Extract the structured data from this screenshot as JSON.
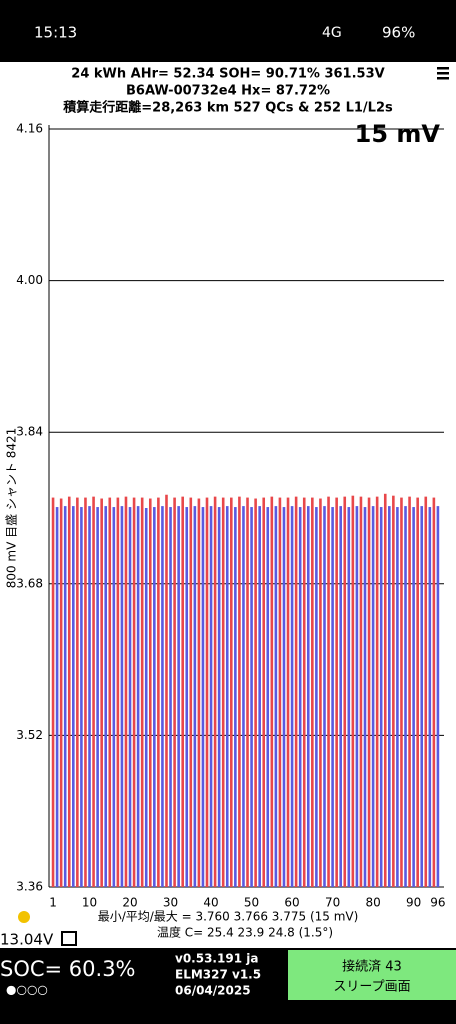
{
  "status_bar": {
    "time": "15:13",
    "network": "4G",
    "battery": "96%"
  },
  "header": {
    "line1": "24 kWh  AHr= 52.34  SOH= 90.71%   361.53V",
    "line2": "B6AW-00732e4   Hx= 87.72%",
    "line3": "積算走行距離=28,263 km 527 QCs & 252 L1/L2s"
  },
  "chart_data": {
    "type": "bar",
    "annotation": "15 mV",
    "y_label": "800 mV 目盛 シャント 8421",
    "x": [
      1,
      2,
      3,
      4,
      5,
      6,
      7,
      8,
      9,
      10,
      11,
      12,
      13,
      14,
      15,
      16,
      17,
      18,
      19,
      20,
      21,
      22,
      23,
      24,
      25,
      26,
      27,
      28,
      29,
      30,
      31,
      32,
      33,
      34,
      35,
      36,
      37,
      38,
      39,
      40,
      41,
      42,
      43,
      44,
      45,
      46,
      47,
      48,
      49,
      50,
      51,
      52,
      53,
      54,
      55,
      56,
      57,
      58,
      59,
      60,
      61,
      62,
      63,
      64,
      65,
      66,
      67,
      68,
      69,
      70,
      71,
      72,
      73,
      74,
      75,
      76,
      77,
      78,
      79,
      80,
      81,
      82,
      83,
      84,
      85,
      86,
      87,
      88,
      89,
      90,
      91,
      92,
      93,
      94,
      95,
      96
    ],
    "values": [
      3.771,
      3.761,
      3.77,
      3.762,
      3.772,
      3.762,
      3.771,
      3.761,
      3.771,
      3.762,
      3.772,
      3.761,
      3.77,
      3.762,
      3.771,
      3.761,
      3.771,
      3.762,
      3.772,
      3.761,
      3.771,
      3.762,
      3.771,
      3.76,
      3.77,
      3.761,
      3.771,
      3.762,
      3.774,
      3.761,
      3.771,
      3.762,
      3.772,
      3.761,
      3.771,
      3.762,
      3.77,
      3.761,
      3.771,
      3.762,
      3.772,
      3.761,
      3.771,
      3.762,
      3.771,
      3.761,
      3.772,
      3.762,
      3.771,
      3.761,
      3.77,
      3.762,
      3.771,
      3.761,
      3.772,
      3.762,
      3.771,
      3.761,
      3.771,
      3.762,
      3.772,
      3.761,
      3.771,
      3.762,
      3.771,
      3.761,
      3.77,
      3.762,
      3.772,
      3.761,
      3.771,
      3.762,
      3.772,
      3.761,
      3.773,
      3.762,
      3.772,
      3.761,
      3.771,
      3.762,
      3.772,
      3.761,
      3.775,
      3.762,
      3.773,
      3.761,
      3.771,
      3.762,
      3.772,
      3.761,
      3.771,
      3.762,
      3.772,
      3.761,
      3.771,
      3.762
    ],
    "colors": [
      "#e8474a",
      "#5a5ae0"
    ],
    "xlim": [
      0,
      97.5
    ],
    "xticks": [
      1,
      10,
      20,
      30,
      40,
      50,
      60,
      70,
      80,
      90,
      96
    ],
    "ylim": [
      3.36,
      4.16
    ],
    "yticks": [
      3.36,
      3.52,
      3.68,
      3.84,
      {
        "value": 4,
        "label": "4.00"
      },
      4.16
    ],
    "grid": true
  },
  "footer": {
    "stats": "最小/平均/最大 = 3.760 3.766 3.775  (15 mV)",
    "temps": "温度 C= 25.4  23.9  24.8  (1.5°)",
    "aux_voltage": "13.04V"
  },
  "bottom_bar": {
    "soc": "SOC= 60.3%",
    "version": "v0.53.191 ja",
    "adapter": "ELM327 v1.5",
    "date": "06/04/2025",
    "status": "接続済 43",
    "sleep": "スリープ画面"
  }
}
